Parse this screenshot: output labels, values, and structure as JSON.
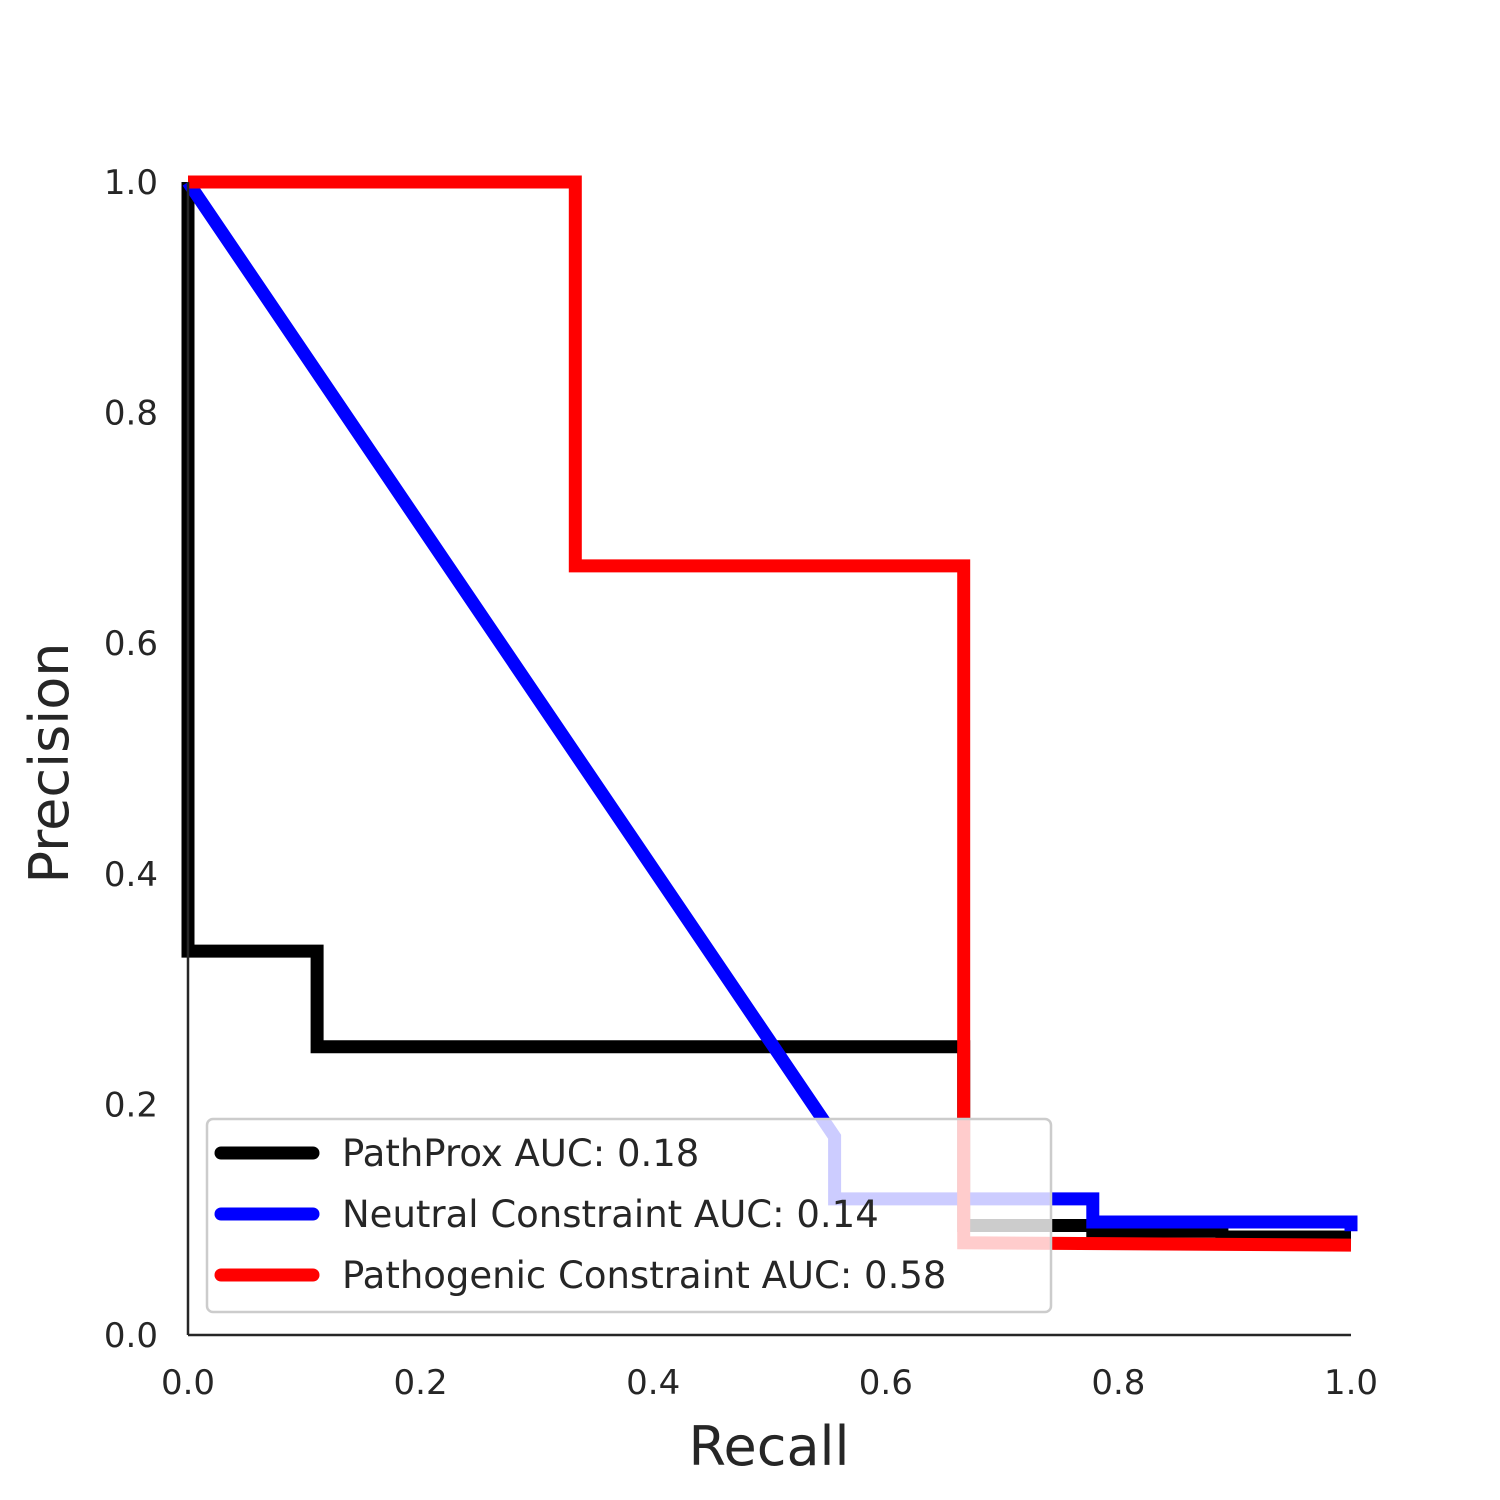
{
  "chart_data": {
    "type": "line",
    "title": "",
    "xlabel": "Recall",
    "ylabel": "Precision",
    "xlim": [
      0,
      1
    ],
    "ylim": [
      0,
      1
    ],
    "xticks": [
      "0.0",
      "0.2",
      "0.4",
      "0.6",
      "0.8",
      "1.0"
    ],
    "yticks": [
      "0.0",
      "0.2",
      "0.4",
      "0.6",
      "0.8",
      "1.0"
    ],
    "grid": false,
    "legend_position": "lower-left",
    "series": [
      {
        "name": "PathProx AUC:  0.18",
        "color": "#000000",
        "x": [
          0.0,
          0.0,
          0.111,
          0.111,
          0.667,
          0.667,
          0.778,
          0.778,
          0.889,
          0.889,
          1.0
        ],
        "y": [
          1.0,
          0.333,
          0.333,
          0.25,
          0.25,
          0.095,
          0.095,
          0.09,
          0.09,
          0.085,
          0.085
        ]
      },
      {
        "name": "Neutral Constraint AUC:  0.14",
        "color": "#0000ff",
        "x": [
          0.0,
          0.556,
          0.556,
          0.778,
          0.778,
          1.0,
          1.0
        ],
        "y": [
          1.0,
          0.172,
          0.118,
          0.118,
          0.098,
          0.098,
          0.09
        ]
      },
      {
        "name": "Pathogenic Constraint AUC:  0.58",
        "color": "#ff0000",
        "x": [
          0.0,
          0.333,
          0.333,
          0.667,
          0.667,
          1.0
        ],
        "y": [
          1.0,
          1.0,
          0.667,
          0.667,
          0.08,
          0.078
        ]
      }
    ]
  }
}
